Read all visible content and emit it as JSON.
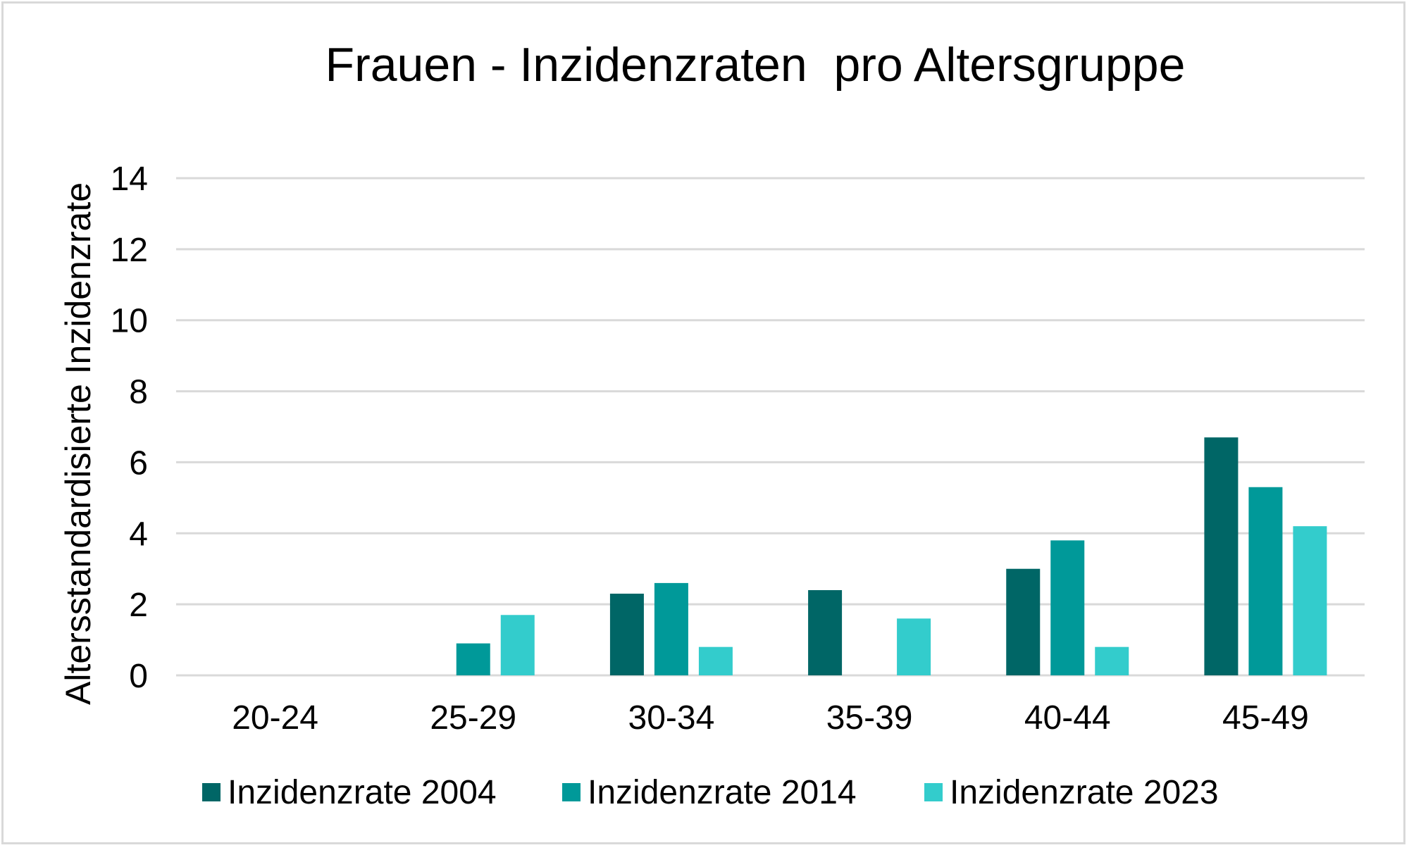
{
  "chart_data": {
    "type": "bar",
    "title": "Frauen - Inzidenzraten  pro Altersgruppe",
    "xlabel": "",
    "ylabel": "Altersstandardisierte Inzidenzrate",
    "categories": [
      "20-24",
      "25-29",
      "30-34",
      "35-39",
      "40-44",
      "45-49"
    ],
    "series": [
      {
        "name": "Inzidenzrate 2004",
        "color": "#006666",
        "values": [
          0,
          0,
          2.3,
          2.4,
          3.0,
          6.7
        ]
      },
      {
        "name": "Inzidenzrate 2014",
        "color": "#009999",
        "values": [
          0,
          0.9,
          2.6,
          0,
          3.8,
          5.3
        ]
      },
      {
        "name": "Inzidenzrate 2023",
        "color": "#33CCCC",
        "values": [
          0,
          1.7,
          0.8,
          1.6,
          0.8,
          4.2
        ]
      }
    ],
    "ylim": [
      0,
      14
    ],
    "yticks": [
      0,
      2,
      4,
      6,
      8,
      10,
      12,
      14
    ],
    "grid": true,
    "gridColor": "#d9d9d9",
    "legend": "bottom"
  }
}
